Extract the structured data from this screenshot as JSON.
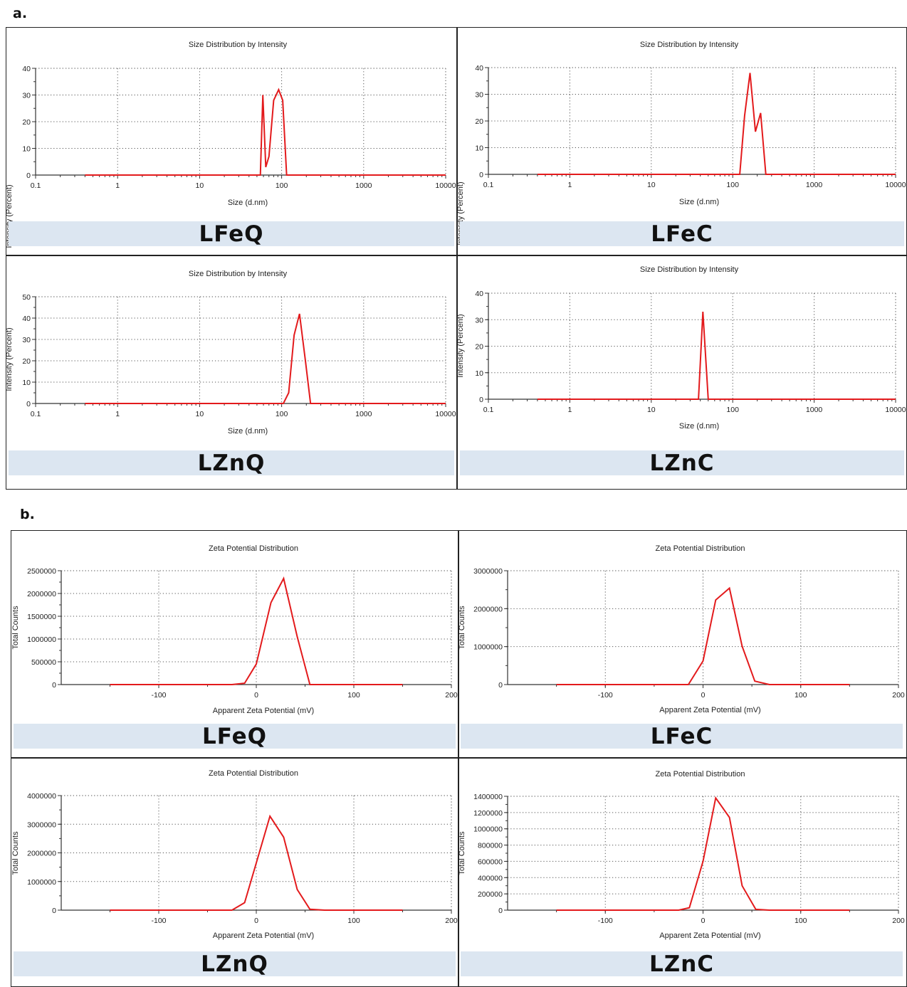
{
  "sections": [
    {
      "label": "a."
    },
    {
      "label": "b."
    }
  ],
  "colors": {
    "series": "#e31a1c",
    "band": "#dce6f1",
    "axis": "#333333"
  },
  "chart_data": [
    {
      "id": "a-lfeq",
      "type": "line",
      "x_scale": "log",
      "title": "Size Distribution by Intensity",
      "xlabel": "Size (d.nm)",
      "ylabel": "Intensity (Percent)",
      "xlim": [
        0.1,
        10000
      ],
      "ylim": [
        0,
        40
      ],
      "xticks": [
        "0.1",
        "1",
        "10",
        "100",
        "1000",
        "10000"
      ],
      "yticks": [
        "0",
        "10",
        "20",
        "30",
        "40"
      ],
      "band_label": "LFeQ",
      "x": [
        0.4,
        50,
        55,
        59,
        64,
        70,
        80,
        92,
        103,
        115,
        125,
        10000
      ],
      "y": [
        0,
        0,
        0,
        30,
        3,
        7,
        28,
        32,
        28,
        0,
        0,
        0
      ]
    },
    {
      "id": "a-lfec",
      "type": "line",
      "x_scale": "log",
      "title": "Size Distribution by Intensity",
      "xlabel": "Size (d.nm)",
      "ylabel": "Intensity (Percent)",
      "xlim": [
        0.1,
        10000
      ],
      "ylim": [
        0,
        40
      ],
      "xticks": [
        "0.1",
        "1",
        "10",
        "100",
        "1000",
        "10000"
      ],
      "yticks": [
        "0",
        "10",
        "20",
        "30",
        "40"
      ],
      "band_label": "LFeC",
      "x": [
        0.4,
        110,
        122,
        140,
        163,
        190,
        220,
        255,
        290,
        10000
      ],
      "y": [
        0,
        0,
        0,
        22,
        38,
        16,
        23,
        0,
        0,
        0
      ]
    },
    {
      "id": "a-lznq",
      "type": "line",
      "x_scale": "log",
      "title": "Size Distribution by Intensity",
      "xlabel": "Size (d.nm)",
      "ylabel": "Intensity (Percent)",
      "xlim": [
        0.1,
        10000
      ],
      "ylim": [
        0,
        50
      ],
      "xticks": [
        "0.1",
        "1",
        "10",
        "100",
        "1000",
        "10000"
      ],
      "yticks": [
        "0",
        "10",
        "20",
        "30",
        "40",
        "50"
      ],
      "band_label": "LZnQ",
      "x": [
        0.4,
        100,
        105,
        122,
        142,
        165,
        195,
        225,
        260,
        10000
      ],
      "y": [
        0,
        0,
        0,
        5,
        32,
        42,
        20,
        0,
        0,
        0
      ]
    },
    {
      "id": "a-lznc",
      "type": "line",
      "x_scale": "log",
      "title": "Size Distribution by Intensity",
      "xlabel": "Size (d.nm)",
      "ylabel": "Intensity (Percent)",
      "xlim": [
        0.1,
        10000
      ],
      "ylim": [
        0,
        40
      ],
      "xticks": [
        "0.1",
        "1",
        "10",
        "100",
        "1000",
        "10000"
      ],
      "yticks": [
        "0",
        "10",
        "20",
        "30",
        "40"
      ],
      "band_label": "LZnC",
      "x": [
        0.4,
        35,
        38,
        43,
        50,
        55,
        10000
      ],
      "y": [
        0,
        0,
        0,
        33,
        0,
        0,
        0
      ]
    },
    {
      "id": "b-lfeq",
      "type": "line",
      "x_scale": "linear",
      "title": "Zeta Potential Distribution",
      "xlabel": "Apparent Zeta Potential (mV)",
      "ylabel": "Total Counts",
      "xlim": [
        -200,
        200
      ],
      "ylim": [
        0,
        2500000
      ],
      "xticks": [
        "-100",
        "0",
        "100",
        "200"
      ],
      "yticks": [
        "0",
        "500000",
        "1000000",
        "1500000",
        "2000000",
        "2500000"
      ],
      "band_label": "LFeQ",
      "x": [
        -150,
        -25,
        -12,
        0,
        15,
        28,
        42,
        55,
        70,
        150
      ],
      "y": [
        0,
        0,
        30000,
        450000,
        1800000,
        2330000,
        1050000,
        0,
        0,
        0
      ]
    },
    {
      "id": "b-lfec",
      "type": "line",
      "x_scale": "linear",
      "title": "Zeta Potential Distribution",
      "xlabel": "Apparent Zeta Potential (mV)",
      "ylabel": "Total Counts",
      "xlim": [
        -200,
        200
      ],
      "ylim": [
        0,
        3000000
      ],
      "xticks": [
        "-100",
        "0",
        "100",
        "200"
      ],
      "yticks": [
        "0",
        "1000000",
        "2000000",
        "3000000"
      ],
      "band_label": "LFeC",
      "x": [
        -150,
        -15,
        0,
        13,
        27,
        40,
        53,
        68,
        150
      ],
      "y": [
        0,
        0,
        620000,
        2230000,
        2540000,
        1010000,
        90000,
        0,
        0
      ]
    },
    {
      "id": "b-lznq",
      "type": "line",
      "x_scale": "linear",
      "title": "Zeta Potential Distribution",
      "xlabel": "Apparent Zeta Potential (mV)",
      "ylabel": "Total Counts",
      "xlim": [
        -200,
        200
      ],
      "ylim": [
        0,
        4000000
      ],
      "xticks": [
        "-100",
        "0",
        "100",
        "200"
      ],
      "yticks": [
        "0",
        "1000000",
        "2000000",
        "3000000",
        "4000000"
      ],
      "band_label": "LZnQ",
      "x": [
        -150,
        -25,
        -12,
        0,
        14,
        28,
        42,
        55,
        70,
        150
      ],
      "y": [
        0,
        0,
        260000,
        1650000,
        3280000,
        2550000,
        720000,
        30000,
        0,
        0
      ]
    },
    {
      "id": "b-lznc",
      "type": "line",
      "x_scale": "linear",
      "title": "Zeta Potential Distribution",
      "xlabel": "Apparent Zeta Potential (mV)",
      "ylabel": "Total Counts",
      "xlim": [
        -200,
        200
      ],
      "ylim": [
        0,
        1400000
      ],
      "xticks": [
        "-100",
        "0",
        "100",
        "200"
      ],
      "yticks": [
        "0",
        "200000",
        "400000",
        "600000",
        "800000",
        "1000000",
        "1200000",
        "1400000"
      ],
      "band_label": "LZnC",
      "x": [
        -150,
        -25,
        -14,
        0,
        13,
        27,
        40,
        54,
        68,
        150
      ],
      "y": [
        0,
        0,
        30000,
        600000,
        1380000,
        1140000,
        300000,
        10000,
        0,
        0
      ]
    }
  ]
}
